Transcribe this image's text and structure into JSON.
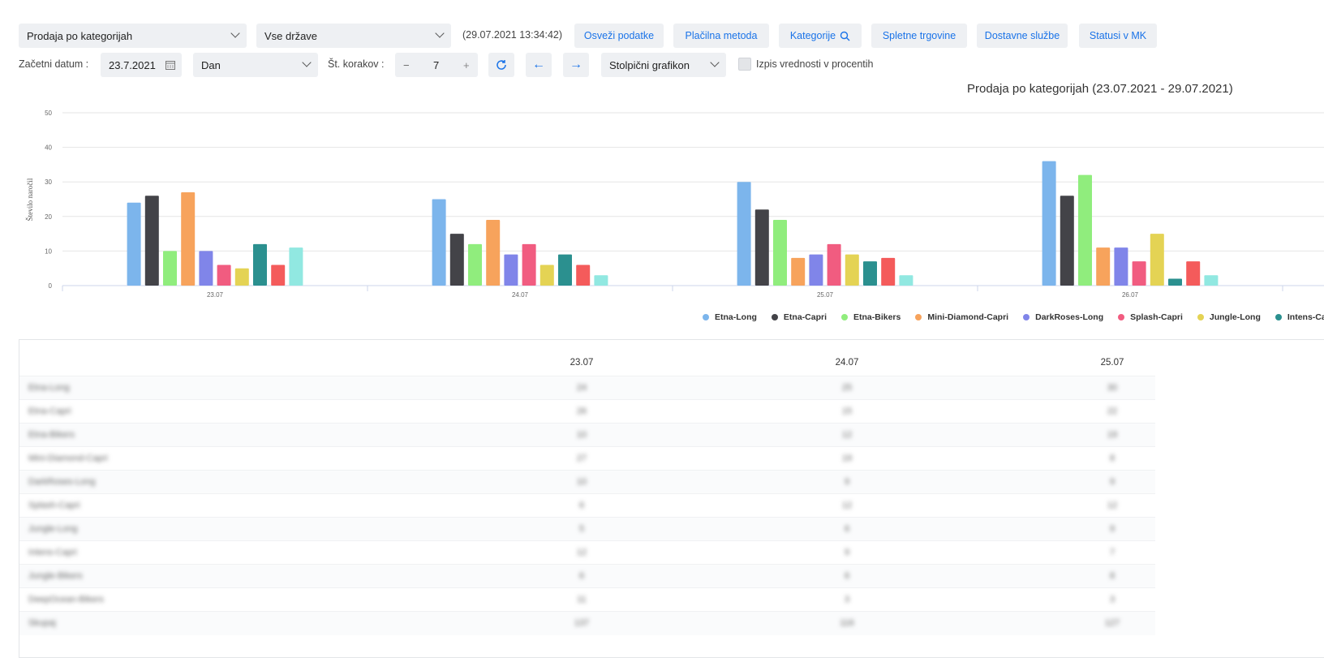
{
  "toolbar": {
    "report_select": "Prodaja po kategorijah",
    "country_select": "Vse države",
    "timestamp": "(29.07.2021 13:34:42)",
    "buttons": [
      "Osveži podatke",
      "Plačilna metoda",
      "Kategorije",
      "Spletne trgovine",
      "Dostavne službe",
      "Statusi v MK"
    ],
    "start_date_label": "Začetni datum :",
    "start_date_value": "23.7.2021",
    "period_select": "Dan",
    "steps_label": "Št. korakov :",
    "steps_value": "7",
    "steps_minus": "−",
    "steps_plus": "+",
    "chart_type_select": "Stolpični grafikon",
    "percent_checkbox_label": "Izpis vrednosti v procentih"
  },
  "chart_data": {
    "type": "bar",
    "title": "Prodaja po kategorijah (23.07.2021 - 29.07.2021)",
    "ylabel": "Število naročil",
    "xlabel": "",
    "ylim": [
      0,
      50
    ],
    "yticks": [
      0,
      10,
      20,
      30,
      40,
      50
    ],
    "grid": true,
    "legend_position": "bottom",
    "categories": [
      "23.07",
      "24.07",
      "25.07",
      "26.07"
    ],
    "series": [
      {
        "name": "Etna-Long",
        "color": "#7cb5ec",
        "values": [
          24,
          25,
          30,
          36
        ]
      },
      {
        "name": "Etna-Capri",
        "color": "#434348",
        "values": [
          26,
          15,
          22,
          26
        ]
      },
      {
        "name": "Etna-Bikers",
        "color": "#90ed7d",
        "values": [
          10,
          12,
          19,
          32
        ]
      },
      {
        "name": "Mini-Diamond-Capri",
        "color": "#f7a35c",
        "values": [
          27,
          19,
          8,
          11
        ]
      },
      {
        "name": "DarkRoses-Long",
        "color": "#8085e9",
        "values": [
          10,
          9,
          9,
          11
        ]
      },
      {
        "name": "Splash-Capri",
        "color": "#f15c80",
        "values": [
          6,
          12,
          12,
          7
        ]
      },
      {
        "name": "Jungle-Long",
        "color": "#e4d354",
        "values": [
          5,
          6,
          9,
          15
        ]
      },
      {
        "name": "Intens-Capri",
        "color": "#2b908f",
        "values": [
          12,
          9,
          7,
          2
        ]
      },
      {
        "name": "",
        "color": "#f45b5b",
        "values": [
          6,
          6,
          8,
          7
        ]
      },
      {
        "name": "",
        "color": "#91e8e1",
        "values": [
          11,
          3,
          3,
          3
        ]
      }
    ],
    "legend_visible": [
      "Etna-Long",
      "Etna-Capri",
      "Etna-Bikers",
      "Mini-Diamond-Capri",
      "DarkRoses-Long",
      "Splash-Capri",
      "Jungle-Long",
      "Intens-Ca"
    ]
  },
  "table": {
    "columns": [
      "23.07",
      "24.07",
      "25.07"
    ],
    "rows": [
      {
        "name": "Etna-Long",
        "values": [
          "24",
          "25",
          "30"
        ]
      },
      {
        "name": "Etna-Capri",
        "values": [
          "26",
          "15",
          "22"
        ]
      },
      {
        "name": "Etna-Bikers",
        "values": [
          "10",
          "12",
          "19"
        ]
      },
      {
        "name": "Mini-Diamond-Capri",
        "values": [
          "27",
          "19",
          "8"
        ]
      },
      {
        "name": "DarkRoses-Long",
        "values": [
          "10",
          "9",
          "9"
        ]
      },
      {
        "name": "Splash-Capri",
        "values": [
          "6",
          "12",
          "12"
        ]
      },
      {
        "name": "Jungle-Long",
        "values": [
          "5",
          "6",
          "9"
        ]
      },
      {
        "name": "Intens-Capri",
        "values": [
          "12",
          "9",
          "7"
        ]
      },
      {
        "name": "Jungle-Bikers",
        "values": [
          "6",
          "6",
          "8"
        ]
      },
      {
        "name": "DeepOcean-Bikers",
        "values": [
          "11",
          "3",
          "3"
        ]
      },
      {
        "name": "Skupaj",
        "values": [
          "137",
          "116",
          "127"
        ]
      }
    ]
  }
}
